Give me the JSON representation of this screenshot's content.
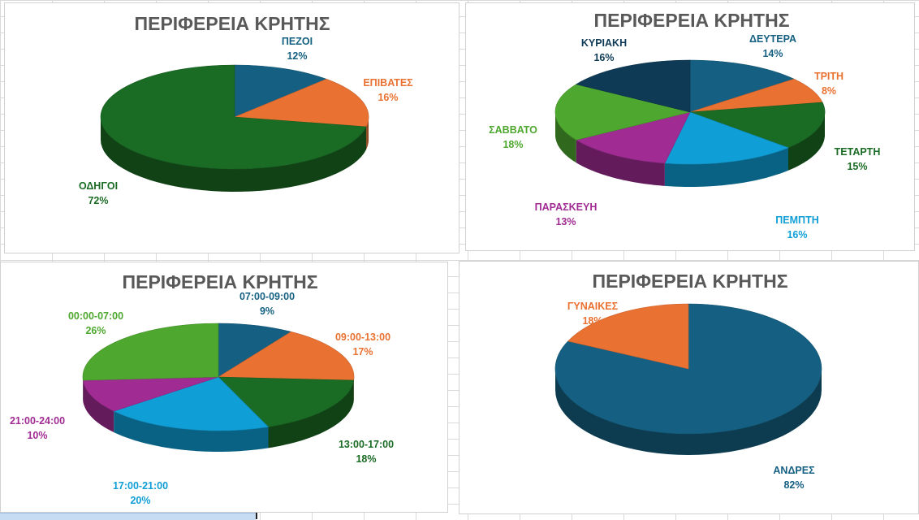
{
  "chart_data": [
    {
      "type": "pie",
      "title": "ΠΕΡΙΦΕΡΕΙΑ ΚΡΗΤΗΣ",
      "categories": [
        "ΠΕΖΟΙ",
        "ΕΠΙΒΑΤΕΣ",
        "ΟΔΗΓΟΙ"
      ],
      "values": [
        12,
        16,
        72
      ],
      "labels": [
        "12%",
        "16%",
        "72%"
      ],
      "colors": [
        "#156082",
        "#e97132",
        "#1a6b24"
      ],
      "style": "3d"
    },
    {
      "type": "pie",
      "title": "ΠΕΡΙΦΕΡΕΙΑ ΚΡΗΤΗΣ",
      "categories": [
        "ΔΕΥΤΕΡΑ",
        "ΤΡΙΤΗ",
        "ΤΕΤΑΡΤΗ",
        "ΠΕΜΠΤΗ",
        "ΠΑΡΑΣΚΕΥΗ",
        "ΣΑΒΒΑΤΟ",
        "ΚΥΡΙΑΚΗ"
      ],
      "values": [
        14,
        8,
        15,
        16,
        13,
        18,
        16
      ],
      "labels": [
        "14%",
        "8%",
        "15%",
        "16%",
        "13%",
        "18%",
        "16%"
      ],
      "colors": [
        "#156082",
        "#e97132",
        "#1a6b24",
        "#0f9ed5",
        "#a02b93",
        "#4ea72e",
        "#0e3a55"
      ],
      "style": "3d"
    },
    {
      "type": "pie",
      "title": "ΠΕΡΙΦΕΡΕΙΑ ΚΡΗΤΗΣ",
      "categories": [
        "07:00-09:00",
        "09:00-13:00",
        "13:00-17:00",
        "17:00-21:00",
        "21:00-24:00",
        "00:00-07:00"
      ],
      "values": [
        9,
        17,
        18,
        20,
        10,
        26
      ],
      "labels": [
        "9%",
        "17%",
        "18%",
        "20%",
        "10%",
        "26%"
      ],
      "colors": [
        "#156082",
        "#e97132",
        "#1a6b24",
        "#0f9ed5",
        "#a02b93",
        "#4ea72e"
      ],
      "style": "3d"
    },
    {
      "type": "pie",
      "title": "ΠΕΡΙΦΕΡΕΙΑ ΚΡΗΤΗΣ",
      "categories": [
        "ΑΝΔΡΕΣ",
        "ΓΥΝΑΙΚΕΣ"
      ],
      "values": [
        82,
        18
      ],
      "labels": [
        "82%",
        "18%"
      ],
      "colors": [
        "#156082",
        "#e97132"
      ],
      "style": "3d"
    }
  ]
}
